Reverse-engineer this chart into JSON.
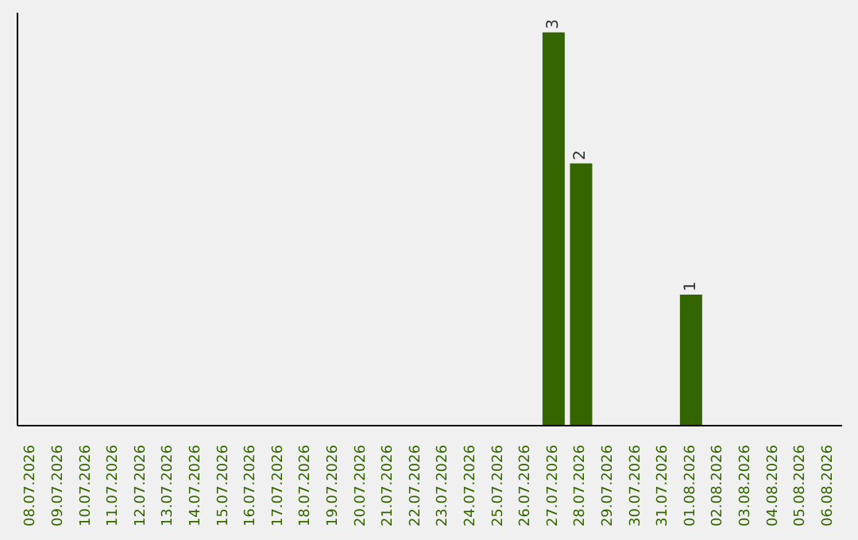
{
  "chart_data": {
    "type": "bar",
    "categories": [
      "08.07.2026",
      "09.07.2026",
      "10.07.2026",
      "11.07.2026",
      "12.07.2026",
      "13.07.2026",
      "14.07.2026",
      "15.07.2026",
      "16.07.2026",
      "17.07.2026",
      "18.07.2026",
      "19.07.2026",
      "20.07.2026",
      "21.07.2026",
      "22.07.2026",
      "23.07.2026",
      "24.07.2026",
      "25.07.2026",
      "26.07.2026",
      "27.07.2026",
      "28.07.2026",
      "29.07.2026",
      "30.07.2026",
      "31.07.2026",
      "01.08.2026",
      "02.08.2026",
      "03.08.2026",
      "04.08.2026",
      "05.08.2026",
      "06.08.2026"
    ],
    "values": [
      null,
      null,
      null,
      null,
      null,
      null,
      null,
      null,
      null,
      null,
      null,
      null,
      null,
      null,
      null,
      null,
      null,
      null,
      null,
      3,
      2,
      null,
      null,
      null,
      1,
      null,
      null,
      null,
      null,
      null
    ],
    "color": "#336600",
    "data_labels": true,
    "relative": false,
    "grid": false,
    "legend": false
  }
}
